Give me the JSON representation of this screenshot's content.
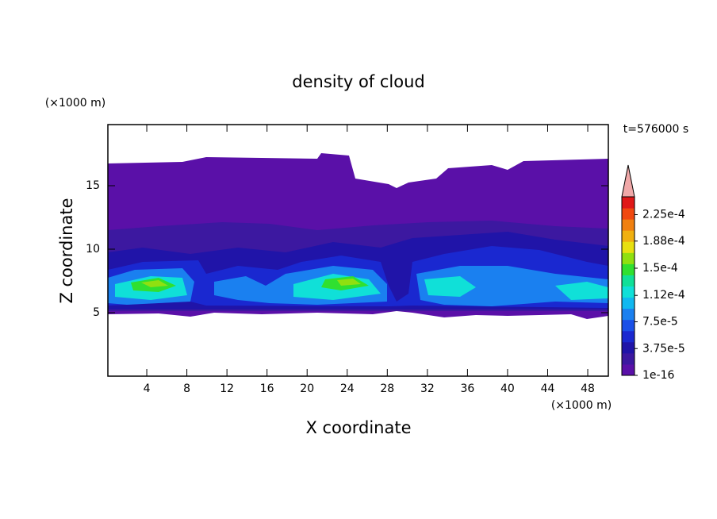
{
  "chart_data": {
    "type": "contour",
    "title": "density of cloud",
    "x_label": "X coordinate",
    "y_label": "Z coordinate",
    "x_unit": "(×1000 m)",
    "y_unit": "(×1000 m)",
    "time_label": "t=576000 s",
    "xlim": [
      0,
      50
    ],
    "ylim": [
      0,
      20
    ],
    "xticks": [
      4,
      8,
      12,
      16,
      20,
      24,
      28,
      32,
      36,
      40,
      44,
      48
    ],
    "yticks": [
      5,
      10,
      15
    ],
    "colorbar": {
      "clim": [
        0,
        0.00025
      ],
      "ticks": [
        {
          "value": 1e-16,
          "label": "1e-16"
        },
        {
          "value": 3.75e-05,
          "label": "3.75e-5"
        },
        {
          "value": 7.5e-05,
          "label": "7.5e-5"
        },
        {
          "value": 0.000112,
          "label": "1.12e-4"
        },
        {
          "value": 0.00015,
          "label": "1.5e-4"
        },
        {
          "value": 0.000188,
          "label": "1.88e-4"
        },
        {
          "value": 0.000225,
          "label": "2.25e-4"
        }
      ],
      "colors": [
        "#5a10a8",
        "#3c18a0",
        "#2014a8",
        "#1a28d0",
        "#1a50e8",
        "#1a80f0",
        "#10b8f0",
        "#10e0d8",
        "#10e098",
        "#30e030",
        "#90e010",
        "#e8e010",
        "#f0b010",
        "#f08010",
        "#f04810",
        "#e01818"
      ],
      "over_color": "#f0a8a8"
    }
  }
}
